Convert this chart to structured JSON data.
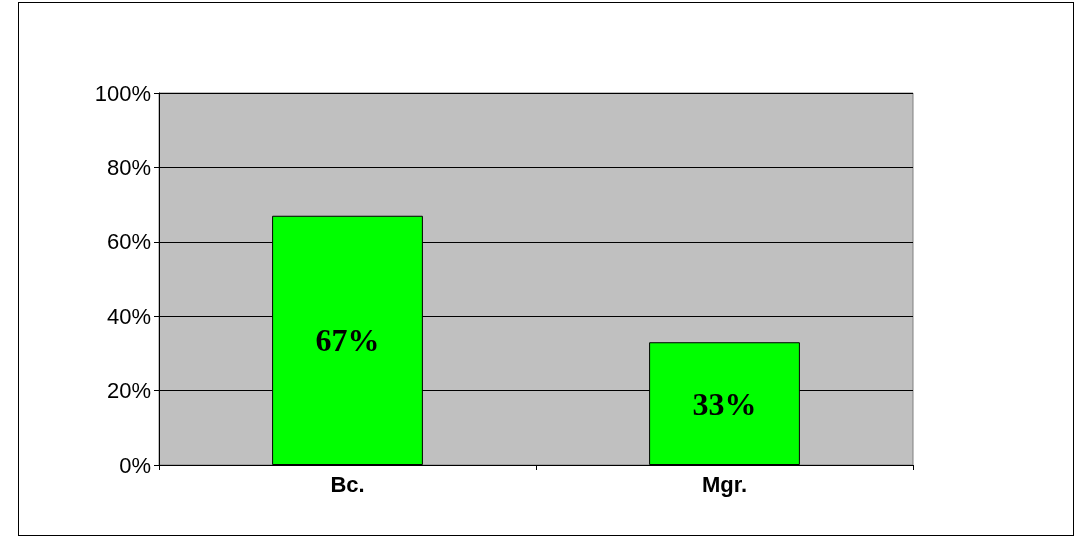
{
  "chart_data": {
    "type": "bar",
    "categories": [
      "Bc.",
      "Mgr."
    ],
    "values": [
      67,
      33
    ],
    "color": "#00ff00",
    "value_labels": [
      "67%",
      "33%"
    ],
    "ylim": [
      0,
      100
    ],
    "yticks": [
      {
        "value": 0,
        "label": "0%"
      },
      {
        "value": 20,
        "label": "20%"
      },
      {
        "value": 40,
        "label": "40%"
      },
      {
        "value": 60,
        "label": "60%"
      },
      {
        "value": 80,
        "label": "80%"
      },
      {
        "value": 100,
        "label": "100%"
      }
    ],
    "grid": "y"
  }
}
